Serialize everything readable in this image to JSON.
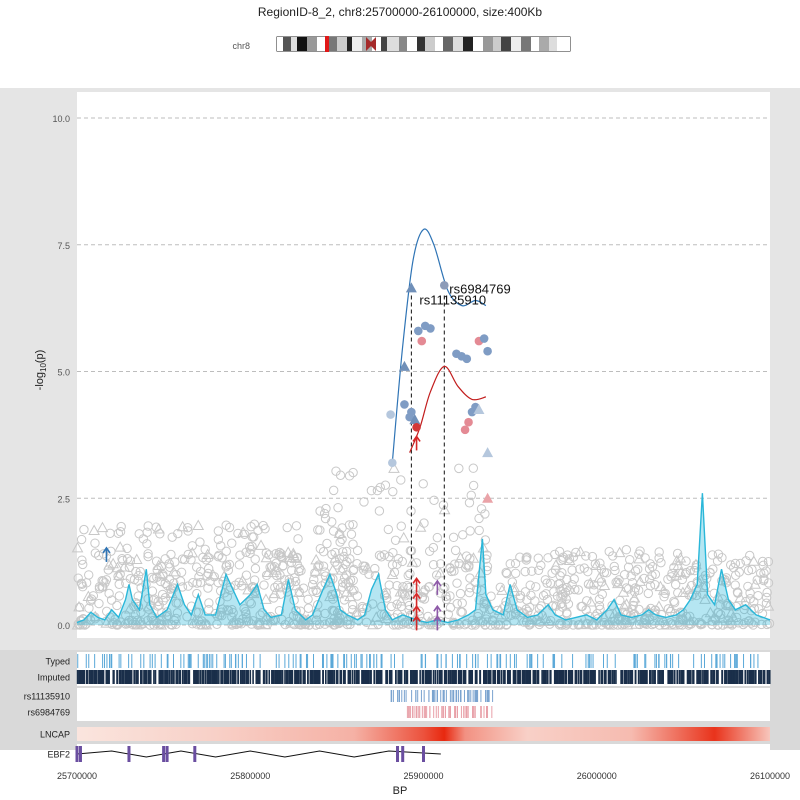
{
  "chart_data": {
    "type": "scatter",
    "title": "RegionID-8_2, chr8:25700000-26100000, size:400Kb",
    "chromosome_label": "chr8",
    "xlabel": "BP",
    "ylabel_prefix": "-log",
    "ylabel_sub": "10",
    "ylabel_suffix": "(p)",
    "xlim": [
      25700000,
      26100000
    ],
    "ylim": [
      0,
      10
    ],
    "y_ticks": [
      0,
      2.5,
      5,
      7.5,
      10
    ],
    "y_tick_labels": [
      "0.0",
      "2.5",
      "5.0",
      "7.5",
      "10.0"
    ],
    "x_ticks": [
      25700000,
      25800000,
      25900000,
      26000000,
      26100000
    ],
    "x_tick_labels": [
      "25700000",
      "25800000",
      "25900000",
      "26000000",
      "26100000"
    ],
    "grid": "horizontal dashed",
    "annotations": [
      {
        "label": "rs11135910",
        "x": 25893000,
        "y": 6.6
      },
      {
        "label": "rs6984769",
        "x": 25912000,
        "y": 6.7
      }
    ],
    "hit_lines": [
      25893000,
      25912000
    ],
    "highlight_points": [
      {
        "x": 25893000,
        "y": 6.65,
        "shape": "triangle",
        "color": "#6f8fb8"
      },
      {
        "x": 25912000,
        "y": 6.7,
        "shape": "circle",
        "color": "#8c9bb8"
      },
      {
        "x": 25901000,
        "y": 5.9,
        "shape": "circle",
        "color": "#7f9cc4"
      },
      {
        "x": 25904000,
        "y": 5.85,
        "shape": "circle",
        "color": "#7f9cc4"
      },
      {
        "x": 25897000,
        "y": 5.8,
        "shape": "circle",
        "color": "#7f9cc4"
      },
      {
        "x": 25899000,
        "y": 5.6,
        "shape": "circle",
        "color": "#e48a94"
      },
      {
        "x": 25919000,
        "y": 5.35,
        "shape": "circle",
        "color": "#7f9cc4"
      },
      {
        "x": 25922000,
        "y": 5.3,
        "shape": "circle",
        "color": "#7f9cc4"
      },
      {
        "x": 25925000,
        "y": 5.25,
        "shape": "circle",
        "color": "#7f9cc4"
      },
      {
        "x": 25932000,
        "y": 5.6,
        "shape": "circle",
        "color": "#e48a94"
      },
      {
        "x": 25935000,
        "y": 5.65,
        "shape": "circle",
        "color": "#7f9cc4"
      },
      {
        "x": 25937000,
        "y": 5.4,
        "shape": "circle",
        "color": "#7f9cc4"
      },
      {
        "x": 25889000,
        "y": 5.1,
        "shape": "triangle",
        "color": "#6f8fb8"
      },
      {
        "x": 25893000,
        "y": 4.2,
        "shape": "circle",
        "color": "#7f9cc4"
      },
      {
        "x": 25889000,
        "y": 4.35,
        "shape": "circle",
        "color": "#7f9cc4"
      },
      {
        "x": 25892000,
        "y": 4.1,
        "shape": "circle",
        "color": "#7f9cc4"
      },
      {
        "x": 25895000,
        "y": 4.05,
        "shape": "triangle",
        "color": "#6f8fb8"
      },
      {
        "x": 25881000,
        "y": 4.15,
        "shape": "circle",
        "color": "#b5c7dd"
      },
      {
        "x": 25896000,
        "y": 3.9,
        "shape": "circle",
        "color": "#d23838"
      },
      {
        "x": 25928000,
        "y": 4.2,
        "shape": "circle",
        "color": "#7f9cc4"
      },
      {
        "x": 25926000,
        "y": 4.0,
        "shape": "circle",
        "color": "#e48a94"
      },
      {
        "x": 25924000,
        "y": 3.85,
        "shape": "circle",
        "color": "#e48a94"
      },
      {
        "x": 25930000,
        "y": 4.3,
        "shape": "circle",
        "color": "#7f9cc4"
      },
      {
        "x": 25937000,
        "y": 3.4,
        "shape": "triangle",
        "color": "#b5c7dd"
      },
      {
        "x": 25937000,
        "y": 2.5,
        "shape": "triangle",
        "color": "#eaa3a8"
      },
      {
        "x": 25882000,
        "y": 3.2,
        "shape": "circle",
        "color": "#b5c7dd"
      },
      {
        "x": 25932000,
        "y": 4.25,
        "shape": "triangle",
        "color": "#b5c7dd"
      }
    ],
    "series": [
      {
        "name": "rs11135910",
        "type": "fitted-curve",
        "color": "#2f74b5",
        "points": [
          [
            25882000,
            3.2
          ],
          [
            25888000,
            5.5
          ],
          [
            25894000,
            7.2
          ],
          [
            25900000,
            7.8
          ],
          [
            25906000,
            7.5
          ],
          [
            25914000,
            6.6
          ],
          [
            25922000,
            6.3
          ],
          [
            25930000,
            6.4
          ],
          [
            25936000,
            6.3
          ]
        ]
      },
      {
        "name": "rs6984769",
        "type": "fitted-curve",
        "color": "#c21d1d",
        "points": [
          [
            25892000,
            3.4
          ],
          [
            25898000,
            3.9
          ],
          [
            25904000,
            4.6
          ],
          [
            25912000,
            5.1
          ],
          [
            25920000,
            4.7
          ],
          [
            25928000,
            4.45
          ],
          [
            25936000,
            4.5
          ]
        ]
      }
    ],
    "signal_track": {
      "color": "#2ab7d9",
      "points": [
        [
          25700000,
          0.05
        ],
        [
          25704000,
          0.1
        ],
        [
          25708000,
          0.25
        ],
        [
          25712000,
          0.15
        ],
        [
          25716000,
          0.1
        ],
        [
          25720000,
          0.3
        ],
        [
          25724000,
          0.15
        ],
        [
          25728000,
          0.5
        ],
        [
          25730000,
          0.8
        ],
        [
          25732000,
          0.5
        ],
        [
          25736000,
          0.3
        ],
        [
          25740000,
          1.1
        ],
        [
          25742000,
          0.4
        ],
        [
          25746000,
          0.15
        ],
        [
          25752000,
          0.3
        ],
        [
          25758000,
          0.8
        ],
        [
          25762000,
          0.4
        ],
        [
          25766000,
          0.2
        ],
        [
          25770000,
          0.6
        ],
        [
          25774000,
          0.2
        ],
        [
          25780000,
          0.2
        ],
        [
          25786000,
          1.0
        ],
        [
          25790000,
          0.7
        ],
        [
          25794000,
          0.4
        ],
        [
          25800000,
          0.6
        ],
        [
          25804000,
          0.8
        ],
        [
          25808000,
          0.3
        ],
        [
          25812000,
          0.15
        ],
        [
          25818000,
          0.2
        ],
        [
          25822000,
          0.9
        ],
        [
          25826000,
          0.3
        ],
        [
          25832000,
          0.1
        ],
        [
          25836000,
          0.2
        ],
        [
          25842000,
          0.7
        ],
        [
          25846000,
          1.0
        ],
        [
          25850000,
          0.6
        ],
        [
          25852000,
          0.3
        ],
        [
          25856000,
          0.2
        ],
        [
          25862000,
          0.1
        ],
        [
          25866000,
          0.2
        ],
        [
          25870000,
          0.7
        ],
        [
          25874000,
          1.0
        ],
        [
          25878000,
          0.3
        ],
        [
          25882000,
          0.1
        ],
        [
          25888000,
          0.2
        ],
        [
          25892000,
          0.15
        ],
        [
          25896000,
          0.1
        ],
        [
          25902000,
          0.05
        ],
        [
          25908000,
          0.1
        ],
        [
          25914000,
          0.05
        ],
        [
          25920000,
          0.1
        ],
        [
          25926000,
          0.2
        ],
        [
          25930000,
          0.3
        ],
        [
          25934000,
          1.7
        ],
        [
          25936000,
          0.6
        ],
        [
          25940000,
          0.3
        ],
        [
          25946000,
          0.2
        ],
        [
          25950000,
          0.8
        ],
        [
          25954000,
          0.3
        ],
        [
          25960000,
          0.15
        ],
        [
          25966000,
          0.2
        ],
        [
          25972000,
          0.4
        ],
        [
          25976000,
          0.2
        ],
        [
          25982000,
          0.1
        ],
        [
          25988000,
          0.15
        ],
        [
          25994000,
          0.2
        ],
        [
          26000000,
          0.1
        ],
        [
          26006000,
          0.3
        ],
        [
          26010000,
          0.5
        ],
        [
          26014000,
          0.2
        ],
        [
          26020000,
          0.15
        ],
        [
          26026000,
          0.2
        ],
        [
          26030000,
          0.3
        ],
        [
          26034000,
          0.2
        ],
        [
          26040000,
          0.15
        ],
        [
          26046000,
          0.2
        ],
        [
          26050000,
          0.3
        ],
        [
          26054000,
          0.5
        ],
        [
          26058000,
          0.8
        ],
        [
          26061000,
          2.6
        ],
        [
          26064000,
          0.6
        ],
        [
          26068000,
          0.4
        ],
        [
          26072000,
          1.1
        ],
        [
          26076000,
          0.5
        ],
        [
          26080000,
          0.3
        ],
        [
          26086000,
          0.4
        ],
        [
          26092000,
          0.2
        ],
        [
          26100000,
          0.1
        ]
      ]
    },
    "arrows": [
      {
        "x": 25717000,
        "y": 1.5,
        "color": "#2f74b5"
      },
      {
        "x": 25896000,
        "y": 3.7,
        "color": "#d62828"
      },
      {
        "x": 25896000,
        "y": 0.9,
        "color": "#d62828"
      },
      {
        "x": 25896000,
        "y": 0.6,
        "color": "#d62828"
      },
      {
        "x": 25896000,
        "y": 0.35,
        "color": "#d62828"
      },
      {
        "x": 25896000,
        "y": 0.15,
        "color": "#d62828"
      },
      {
        "x": 25908000,
        "y": 0.85,
        "color": "#8e5aa8"
      },
      {
        "x": 25908000,
        "y": 0.35,
        "color": "#8e5aa8"
      },
      {
        "x": 25908000,
        "y": 0.15,
        "color": "#8e5aa8"
      }
    ],
    "tracks": [
      {
        "label": "Typed",
        "type": "ticks",
        "color": "#5aa8d8"
      },
      {
        "label": "Imputed",
        "type": "ticks",
        "color": "#1a2f4a"
      },
      {
        "label": "rs11135910",
        "type": "ticks",
        "color": "#7aa3cf",
        "range": [
          25881000,
          25940000
        ]
      },
      {
        "label": "rs6984769",
        "type": "ticks",
        "color": "#e8a0a8",
        "range": [
          25889000,
          25940000
        ]
      },
      {
        "label": "LNCAP",
        "type": "heat",
        "peaks": [
          [
            25700000,
            0.1
          ],
          [
            25780000,
            0.2
          ],
          [
            25860000,
            0.35
          ],
          [
            25900000,
            0.8
          ],
          [
            25912000,
            1.0
          ],
          [
            25924000,
            0.5
          ],
          [
            25960000,
            0.2
          ],
          [
            26020000,
            0.3
          ],
          [
            26068000,
            0.95
          ],
          [
            26100000,
            0.25
          ]
        ]
      },
      {
        "label": "EBF2",
        "type": "gene",
        "color": "#6a4ea0"
      }
    ]
  }
}
